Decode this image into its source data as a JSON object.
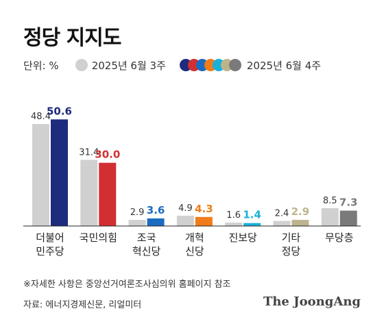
{
  "title": "정당 지지도",
  "legend": {
    "unit": "단위: %",
    "prev_label": "2025년 6월 3주",
    "curr_label": "2025년 6월 4주"
  },
  "colors": {
    "prev": "#d0d0d0",
    "series_curr": [
      "#1f2b7c",
      "#d22f33",
      "#1b6cc0",
      "#f07c1b",
      "#1ab1d8",
      "#bdb48e",
      "#7a7a7a"
    ],
    "legend_dots": [
      "#1f2b7c",
      "#d22f33",
      "#1b6cc0",
      "#f07c1b",
      "#1ab1d8",
      "#bdb48e",
      "#7a7a7a"
    ]
  },
  "chart_data": {
    "type": "bar",
    "categories": [
      [
        "더불어",
        "민주당"
      ],
      [
        "국민의힘"
      ],
      [
        "조국",
        "혁신당"
      ],
      [
        "개혁",
        "신당"
      ],
      [
        "진보당"
      ],
      [
        "기타",
        "정당"
      ],
      [
        "무당층"
      ]
    ],
    "series": [
      {
        "name": "2025년 6월 3주",
        "values": [
          48.4,
          31.4,
          2.9,
          4.9,
          1.6,
          2.4,
          8.5
        ]
      },
      {
        "name": "2025년 6월 4주",
        "values": [
          50.6,
          30.0,
          3.6,
          4.3,
          1.4,
          2.9,
          7.3
        ]
      }
    ],
    "value_labels": [
      [
        "48.4",
        "31.4",
        "2.9",
        "4.9",
        "1.6",
        "2.4",
        "8.5"
      ],
      [
        "50.6",
        "30.0",
        "3.6",
        "4.3",
        "1.4",
        "2.9",
        "7.3"
      ]
    ],
    "ylim": [
      0,
      52
    ],
    "grid": false
  },
  "footnote": "※자세한 사항은 중앙선거여론조사심의위 홈페이지 참조",
  "source": "자료: 에너지경제신문, 리얼미터",
  "brand": "The JoongAng"
}
